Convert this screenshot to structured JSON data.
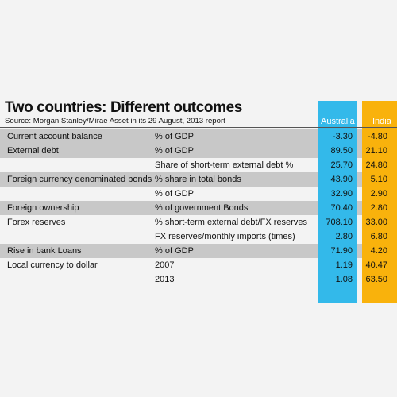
{
  "title": "Two countries: Different outcomes",
  "source": "Source: Morgan Stanley/Mirae Asset in its 29 August, 2013 report",
  "columns": {
    "australia": "Australia",
    "india": "India"
  },
  "colors": {
    "australia": "#33b9ea",
    "india": "#f9b20c",
    "shade": "#c8c8c8"
  },
  "rows": [
    {
      "label": "Current account balance",
      "measure": "% of GDP",
      "australia": "-3.30",
      "india": "-4.80"
    },
    {
      "label": "External debt",
      "measure": "% of GDP",
      "australia": "89.50",
      "india": "21.10"
    },
    {
      "label": "",
      "measure": "Share of short-term external debt %",
      "australia": "25.70",
      "india": "24.80"
    },
    {
      "label": "Foreign currency denominated bonds",
      "measure": "% share in total bonds",
      "australia": "43.90",
      "india": "5.10"
    },
    {
      "label": "",
      "measure": "% of GDP",
      "australia": "32.90",
      "india": "2.90"
    },
    {
      "label": "Foreign ownership",
      "measure": "% of government Bonds",
      "australia": "70.40",
      "india": "2.80"
    },
    {
      "label": "Forex reserves",
      "measure": "% short-term external debt/FX reserves",
      "australia": "708.10",
      "india": "33.00"
    },
    {
      "label": "",
      "measure": "FX reserves/monthly imports (times)",
      "australia": "2.80",
      "india": "6.80"
    },
    {
      "label": "Rise in bank Loans",
      "measure": "% of GDP",
      "australia": "71.90",
      "india": "4.20"
    },
    {
      "label": "Local currency to dollar",
      "measure": "2007",
      "australia": "1.19",
      "india": "40.47"
    },
    {
      "label": "",
      "measure": "2013",
      "australia": "1.08",
      "india": "63.50"
    }
  ]
}
